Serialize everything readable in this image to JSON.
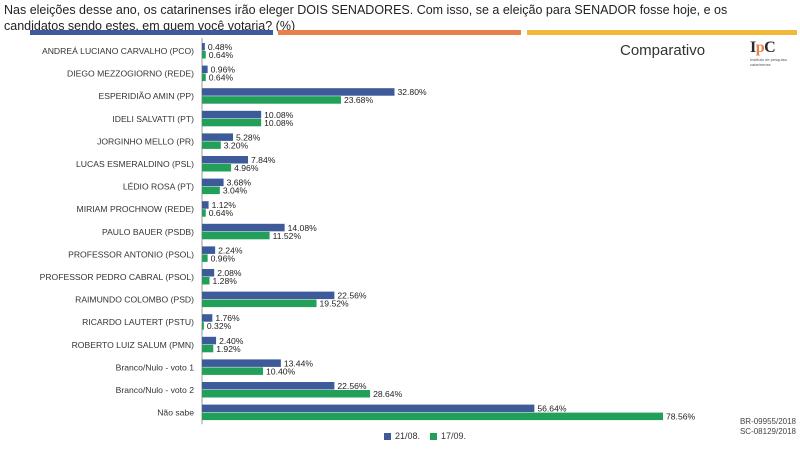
{
  "header": {
    "question": "Nas eleições desse ano, os catarinenses irão eleger DOIS SENADORES. Com isso, se a eleição para SENADOR fosse hoje, e os candidatos sendo estes, em quem você votaria? (%)",
    "panel_title": "Comparativo"
  },
  "logo": {
    "mark_i": "I",
    "mark_p": "p",
    "mark_c": "C",
    "tagline": "Instituto de pesquisa catarinense"
  },
  "colors": {
    "series_1": "#3d5a99",
    "series_2": "#22a05a",
    "strip_1": "#3d5a99",
    "strip_2": "#e8804a",
    "strip_3": "#f2b83a"
  },
  "chart_data": {
    "type": "bar",
    "orientation": "horizontal",
    "categories": [
      "ANDREÁ LUCIANO CARVALHO (PCO)",
      "DIEGO MEZZOGIORNO (REDE)",
      "ESPERIDIÃO AMIN (PP)",
      "IDELI SALVATTI (PT)",
      "JORGINHO MELLO (PR)",
      "LUCAS ESMERALDINO (PSL)",
      "LÉDIO ROSA (PT)",
      "MIRIAM PROCHNOW (REDE)",
      "PAULO BAUER (PSDB)",
      "PROFESSOR ANTONIO (PSOL)",
      "PROFESSOR PEDRO CABRAL (PSOL)",
      "RAIMUNDO COLOMBO (PSD)",
      "RICARDO LAUTERT (PSTU)",
      "ROBERTO LUIZ SALUM (PMN)",
      "Branco/Nulo - voto 1",
      "Branco/Nulo - voto 2",
      "Não sabe"
    ],
    "series": [
      {
        "name": "21/08.",
        "values": [
          0.48,
          0.96,
          32.8,
          10.08,
          5.28,
          7.84,
          3.68,
          1.12,
          14.08,
          2.24,
          2.08,
          22.56,
          1.76,
          2.4,
          13.44,
          22.56,
          56.64
        ],
        "labels": [
          "0.48%",
          "0.96%",
          "32.80%",
          "10.08%",
          "5.28%",
          "7.84%",
          "3.68%",
          "1.12%",
          "14.08%",
          "2.24%",
          "2.08%",
          "22.56%",
          "1.76%",
          "2.40%",
          "13.44%",
          "22.56%",
          "56.64%"
        ]
      },
      {
        "name": "17/09.",
        "values": [
          0.64,
          0.64,
          23.68,
          10.08,
          3.2,
          4.96,
          3.04,
          0.64,
          11.52,
          0.96,
          1.28,
          19.52,
          0.32,
          1.92,
          10.4,
          28.64,
          78.56
        ],
        "labels": [
          "0.64%",
          "0.64%",
          "23.68%",
          "10.08%",
          "3.20%",
          "4.96%",
          "3.04%",
          "0.64%",
          "11.52%",
          "0.96%",
          "1.28%",
          "19.52%",
          "0.32%",
          "1.92%",
          "10.40%",
          "28.64%",
          "78.56%"
        ]
      }
    ],
    "legend_position": "bottom",
    "grid": false
  },
  "footer": {
    "codes": [
      "BR-09955/2018",
      "SC-08129/2018"
    ]
  }
}
